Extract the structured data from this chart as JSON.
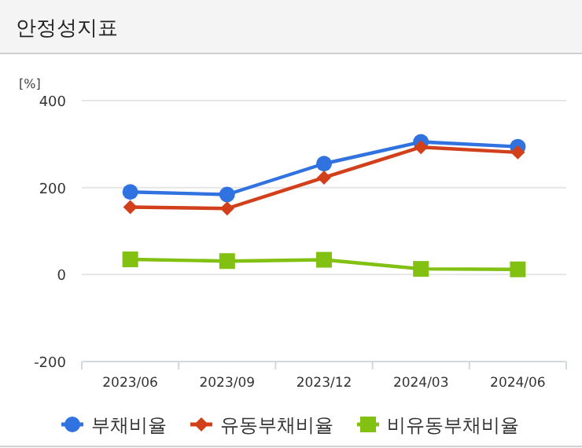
{
  "chart_data": {
    "type": "line",
    "title": "안정성지표",
    "ylabel": "[%]",
    "categories": [
      "2023/06",
      "2023/09",
      "2023/12",
      "2024/03",
      "2024/06"
    ],
    "series": [
      {
        "name": "부채비율",
        "color": "#3072e0",
        "marker": "circle",
        "values": [
          190,
          184,
          255,
          305,
          294
        ]
      },
      {
        "name": "유동부채비율",
        "color": "#d1401b",
        "marker": "diamond",
        "values": [
          155,
          152,
          223,
          293,
          281
        ]
      },
      {
        "name": "비유동부채비율",
        "color": "#82c012",
        "marker": "square",
        "values": [
          35,
          31,
          34,
          13,
          12
        ]
      }
    ],
    "ylim": [
      -200,
      400
    ],
    "yticks": [
      -200,
      0,
      200,
      400
    ],
    "grid": "y",
    "legend": "bottom"
  }
}
